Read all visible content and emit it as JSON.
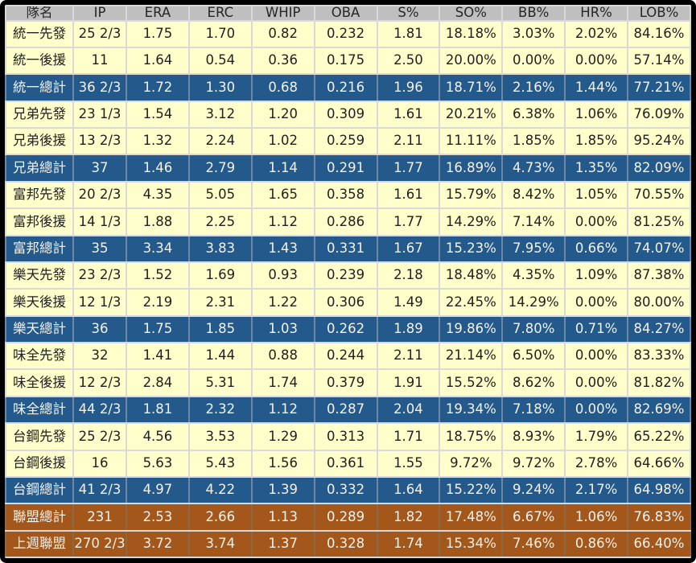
{
  "chart_data": {
    "type": "table",
    "columns": [
      "隊名",
      "IP",
      "ERA",
      "ERC",
      "WHIP",
      "OBA",
      "S%",
      "SO%",
      "BB%",
      "HR%",
      "LOB%"
    ],
    "rows": [
      {
        "style": "normal",
        "cells": [
          "統一先發",
          "25 2/3",
          "1.75",
          "1.70",
          "0.82",
          "0.232",
          "1.81",
          "18.18%",
          "3.03%",
          "2.02%",
          "84.16%"
        ]
      },
      {
        "style": "normal",
        "cells": [
          "統一後援",
          "11",
          "1.64",
          "0.54",
          "0.36",
          "0.175",
          "2.50",
          "20.00%",
          "0.00%",
          "0.00%",
          "57.14%"
        ]
      },
      {
        "style": "team-total",
        "cells": [
          "統一總計",
          "36 2/3",
          "1.72",
          "1.30",
          "0.68",
          "0.216",
          "1.96",
          "18.71%",
          "2.16%",
          "1.44%",
          "77.21%"
        ]
      },
      {
        "style": "normal",
        "cells": [
          "兄弟先發",
          "23 1/3",
          "1.54",
          "3.12",
          "1.20",
          "0.309",
          "1.61",
          "20.21%",
          "6.38%",
          "1.06%",
          "76.09%"
        ]
      },
      {
        "style": "normal",
        "cells": [
          "兄弟後援",
          "13 2/3",
          "1.32",
          "2.24",
          "1.02",
          "0.259",
          "2.11",
          "11.11%",
          "1.85%",
          "1.85%",
          "95.24%"
        ]
      },
      {
        "style": "team-total",
        "cells": [
          "兄弟總計",
          "37",
          "1.46",
          "2.79",
          "1.14",
          "0.291",
          "1.77",
          "16.89%",
          "4.73%",
          "1.35%",
          "82.09%"
        ]
      },
      {
        "style": "normal",
        "cells": [
          "富邦先發",
          "20 2/3",
          "4.35",
          "5.05",
          "1.65",
          "0.358",
          "1.61",
          "15.79%",
          "8.42%",
          "1.05%",
          "70.55%"
        ]
      },
      {
        "style": "normal",
        "cells": [
          "富邦後援",
          "14 1/3",
          "1.88",
          "2.25",
          "1.12",
          "0.286",
          "1.77",
          "14.29%",
          "7.14%",
          "0.00%",
          "81.25%"
        ]
      },
      {
        "style": "team-total",
        "cells": [
          "富邦總計",
          "35",
          "3.34",
          "3.83",
          "1.43",
          "0.331",
          "1.67",
          "15.23%",
          "7.95%",
          "0.66%",
          "74.07%"
        ]
      },
      {
        "style": "normal",
        "cells": [
          "樂天先發",
          "23 2/3",
          "1.52",
          "1.69",
          "0.93",
          "0.239",
          "2.18",
          "18.48%",
          "4.35%",
          "1.09%",
          "87.38%"
        ]
      },
      {
        "style": "normal",
        "cells": [
          "樂天後援",
          "12 1/3",
          "2.19",
          "2.31",
          "1.22",
          "0.306",
          "1.49",
          "22.45%",
          "14.29%",
          "0.00%",
          "80.00%"
        ]
      },
      {
        "style": "team-total",
        "cells": [
          "樂天總計",
          "36",
          "1.75",
          "1.85",
          "1.03",
          "0.262",
          "1.89",
          "19.86%",
          "7.80%",
          "0.71%",
          "84.27%"
        ]
      },
      {
        "style": "normal",
        "cells": [
          "味全先發",
          "32",
          "1.41",
          "1.44",
          "0.88",
          "0.244",
          "2.11",
          "21.14%",
          "6.50%",
          "0.00%",
          "83.33%"
        ]
      },
      {
        "style": "normal",
        "cells": [
          "味全後援",
          "12 2/3",
          "2.84",
          "5.31",
          "1.74",
          "0.379",
          "1.91",
          "15.52%",
          "8.62%",
          "0.00%",
          "81.82%"
        ]
      },
      {
        "style": "team-total",
        "cells": [
          "味全總計",
          "44 2/3",
          "1.81",
          "2.32",
          "1.12",
          "0.287",
          "2.04",
          "19.34%",
          "7.18%",
          "0.00%",
          "82.69%"
        ]
      },
      {
        "style": "normal",
        "cells": [
          "台鋼先發",
          "25 2/3",
          "4.56",
          "3.53",
          "1.29",
          "0.313",
          "1.71",
          "18.75%",
          "8.93%",
          "1.79%",
          "65.22%"
        ]
      },
      {
        "style": "normal",
        "cells": [
          "台鋼後援",
          "16",
          "5.63",
          "5.43",
          "1.56",
          "0.361",
          "1.55",
          "9.72%",
          "9.72%",
          "2.78%",
          "64.66%"
        ]
      },
      {
        "style": "team-total",
        "cells": [
          "台鋼總計",
          "41 2/3",
          "4.97",
          "4.22",
          "1.39",
          "0.332",
          "1.64",
          "15.22%",
          "9.24%",
          "2.17%",
          "64.98%"
        ]
      },
      {
        "style": "league",
        "cells": [
          "聯盟總計",
          "231",
          "2.53",
          "2.66",
          "1.13",
          "0.289",
          "1.82",
          "17.48%",
          "6.67%",
          "1.06%",
          "76.83%"
        ]
      },
      {
        "style": "league",
        "cells": [
          "上週聯盟",
          "270 2/3",
          "3.72",
          "3.74",
          "1.37",
          "0.328",
          "1.74",
          "15.34%",
          "7.46%",
          "0.86%",
          "66.40%"
        ]
      }
    ]
  },
  "colors": {
    "header_bg": "#BFBFBF",
    "data_row_bg": "#FFFFCC",
    "team_total_bg": "#235A8B",
    "league_row_bg": "#A4571B",
    "grid_line": "#D9D9D9",
    "outer_border": "#000000",
    "text_dark": "#1F1F1F",
    "text_light": "#F2F1EC"
  }
}
